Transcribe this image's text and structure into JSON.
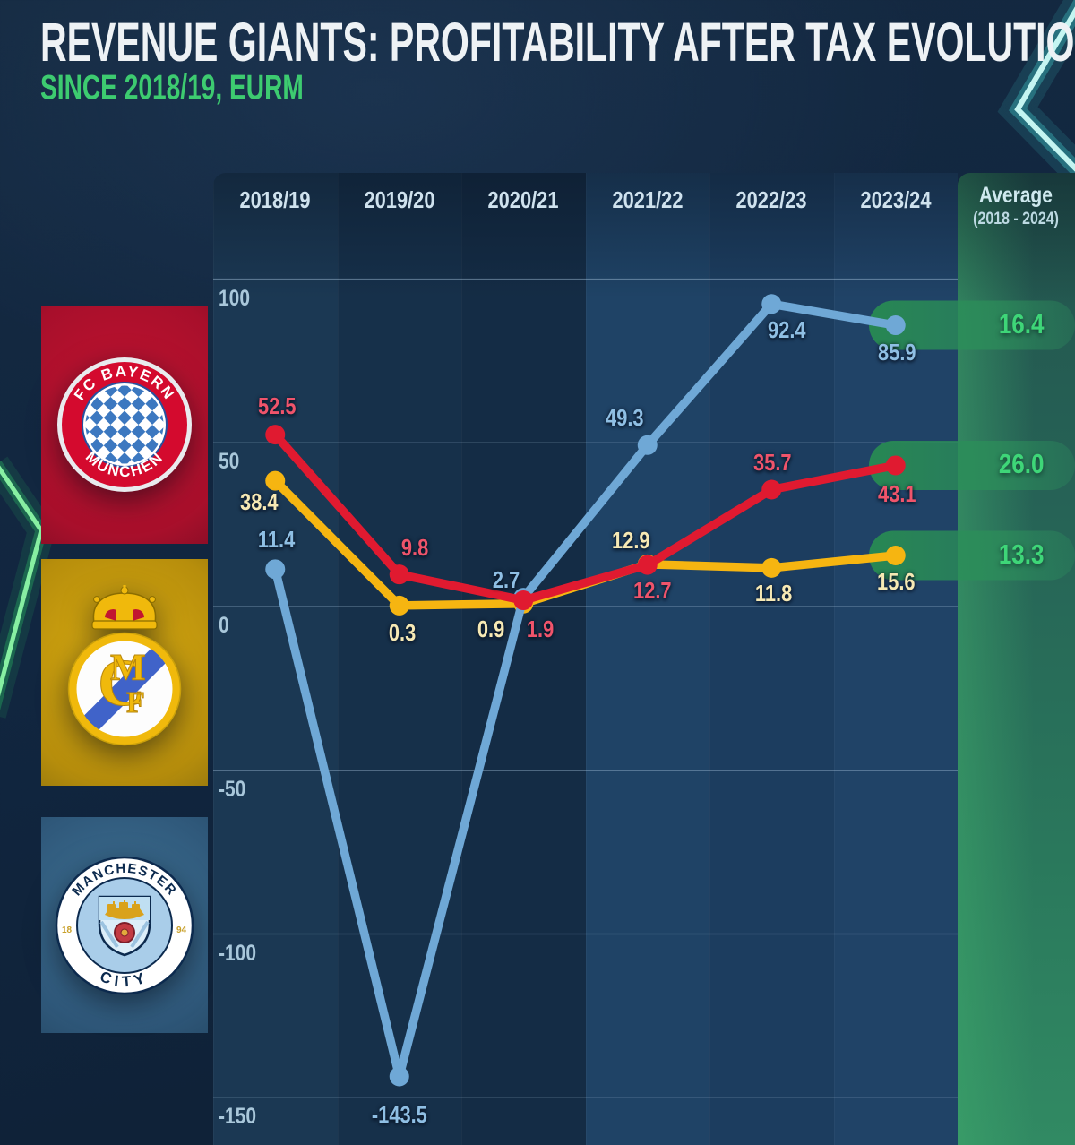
{
  "title": "REVENUE GIANTS: PROFITABILITY AFTER TAX EVOLUTION",
  "subtitle": "SINCE 2018/19, EURM",
  "clubs": [
    {
      "name": "FC Bayern München",
      "logo_top": "FC BAYERN",
      "logo_bottom": "MÜNCHEN",
      "band_color": "#b01229"
    },
    {
      "name": "Real Madrid",
      "monogram": "MCF",
      "band_color": "#c3990d"
    },
    {
      "name": "Manchester City",
      "logo_top": "MANCHESTER",
      "logo_bottom": "CITY",
      "year_left": "18",
      "year_right": "94",
      "band_color": "#35678a"
    }
  ],
  "chart_data": {
    "type": "line",
    "title": "REVENUE GIANTS: PROFITABILITY AFTER TAX EVOLUTION",
    "subtitle": "SINCE 2018/19, EURM",
    "categories": [
      "2018/19",
      "2019/20",
      "2020/21",
      "2021/22",
      "2022/23",
      "2023/24"
    ],
    "average_header": {
      "line1": "Average",
      "line2": "(2018 - 2024)"
    },
    "y_ticks": [
      "100",
      "50",
      "0",
      "-50",
      "-100",
      "-150"
    ],
    "y_tick_values": [
      100,
      50,
      0,
      -50,
      -100,
      -150
    ],
    "ylim": [
      -160,
      115
    ],
    "grid": true,
    "legend_position": "left-logos",
    "series": [
      {
        "name": "Manchester City",
        "color": "#6fa8d6",
        "label_color": "#8fbfe4",
        "values": [
          11.4,
          -143.5,
          2.7,
          49.3,
          92.4,
          85.9
        ],
        "labels": [
          "11.4",
          "-143.5",
          "2.7",
          "49.3",
          "92.4",
          "85.9"
        ],
        "average": 16.4,
        "average_label": "16.4"
      },
      {
        "name": "FC Bayern München",
        "color": "#e01a30",
        "label_color": "#f0546b",
        "values": [
          52.5,
          9.8,
          1.9,
          12.7,
          35.7,
          43.1
        ],
        "labels": [
          "52.5",
          "9.8",
          "1.9",
          "12.7",
          "35.7",
          "43.1"
        ],
        "average": 26.0,
        "average_label": "26.0"
      },
      {
        "name": "Real Madrid",
        "color": "#f6b511",
        "label_color": "#f6e9b4",
        "values": [
          38.4,
          0.3,
          0.9,
          12.9,
          11.8,
          15.6
        ],
        "labels": [
          "38.4",
          "0.3",
          "0.9",
          "12.9",
          "11.8",
          "15.6"
        ],
        "average": 13.3,
        "average_label": "13.3"
      }
    ],
    "accent_colors": {
      "average_text": "#3ed678",
      "highlight_pill": "#278753",
      "subtitle_green": "#3dcb70"
    }
  }
}
